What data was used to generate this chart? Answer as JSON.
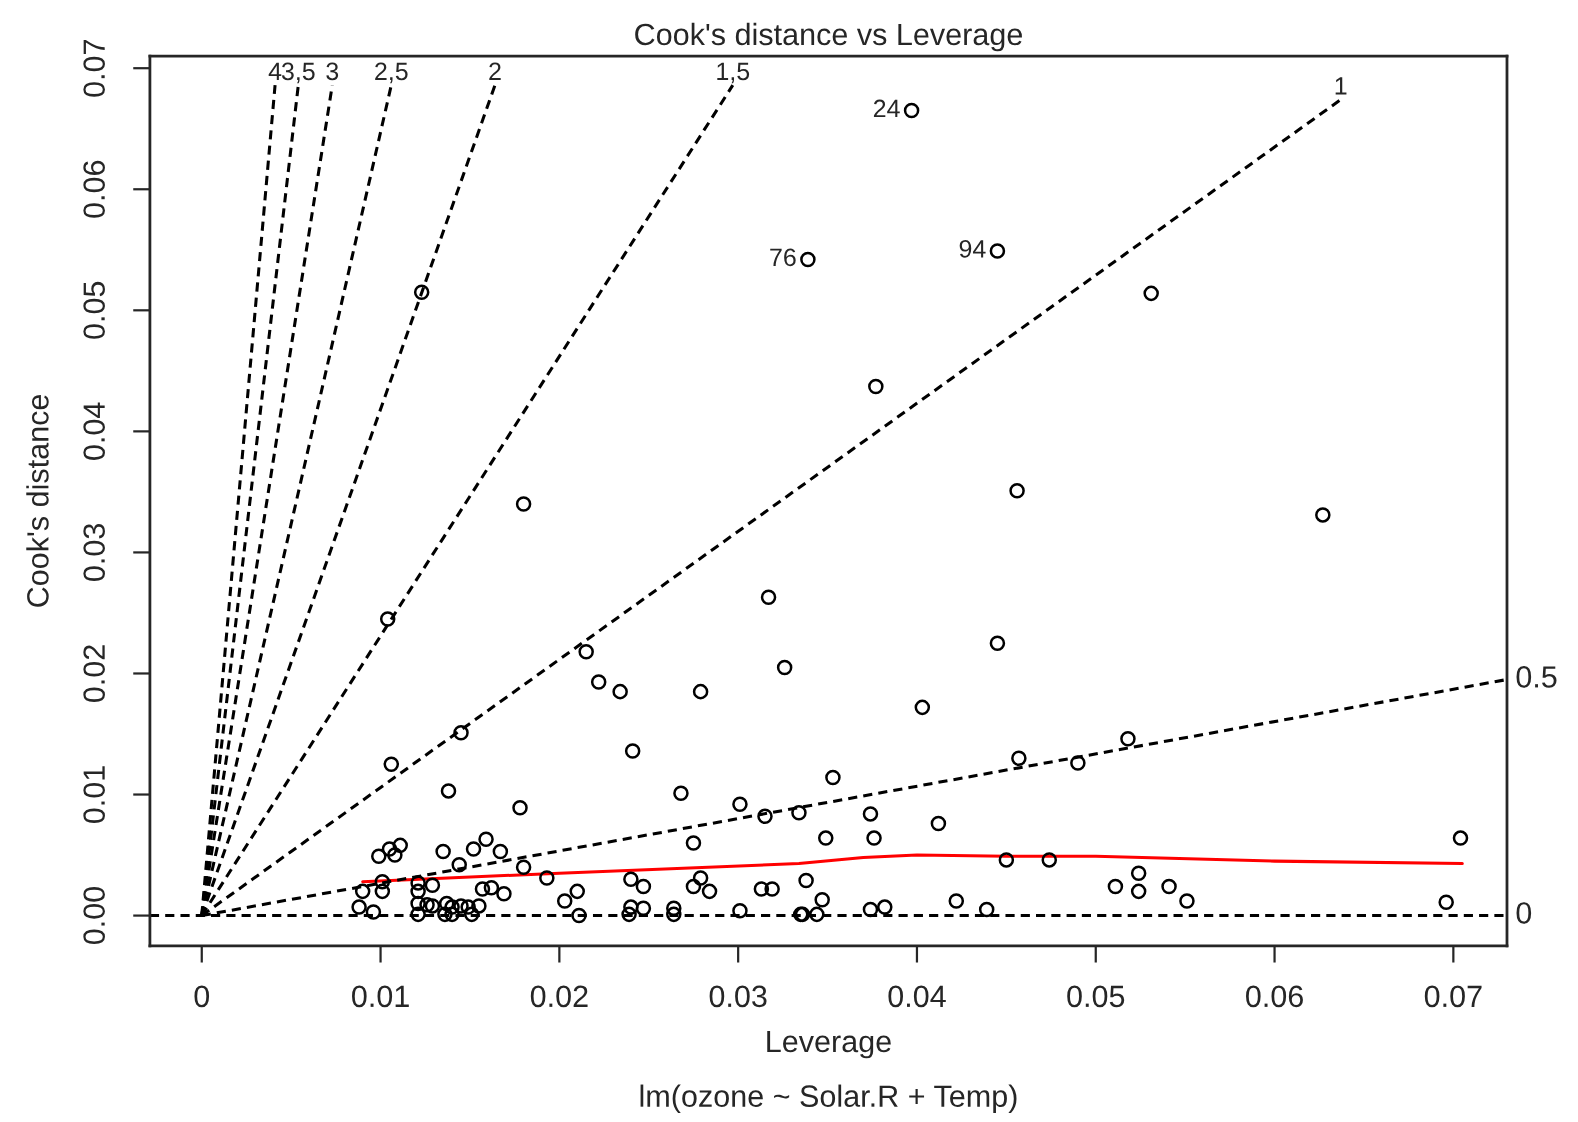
{
  "chart_data": {
    "type": "scatter",
    "title": "Cook's distance vs Leverage",
    "xlabel": "Leverage",
    "ylabel": "Cook's distance",
    "annotations": [
      "lm(ozone ~ Solar.R + Temp)",
      {
        "text": "24",
        "x": 0.0397,
        "y": 0.0665
      },
      {
        "text": "94",
        "x": 0.0445,
        "y": 0.0549
      },
      {
        "text": "76",
        "x": 0.0339,
        "y": 0.0542
      }
    ],
    "xlim": [
      -0.0029,
      0.073
    ],
    "ylim": [
      -0.0025,
      0.071
    ],
    "xticks": [
      0,
      0.01,
      0.02,
      0.03,
      0.04,
      0.05,
      0.06,
      0.07
    ],
    "yticks": [
      {
        "value": 0,
        "label": "0.00"
      },
      {
        "value": 0.01,
        "label": "0.01"
      },
      {
        "value": 0.02,
        "label": "0.02"
      },
      {
        "value": 0.03,
        "label": "0.03"
      },
      {
        "value": 0.04,
        "label": "0.04"
      },
      {
        "value": 0.05,
        "label": "0.05"
      },
      {
        "value": 0.06,
        "label": "0.06"
      },
      {
        "value": 0.07,
        "label": "0.07"
      }
    ],
    "grid": false,
    "series": [
      {
        "marker": "circle",
        "color": "#000000",
        "x": [
          0.0397,
          0.0445,
          0.0339,
          0.0531,
          0.0377,
          0.0456,
          0.0627,
          0.0123,
          0.018,
          0.0104,
          0.0106,
          0.0138,
          0.0145,
          0.0178,
          0.0215,
          0.0222,
          0.0234,
          0.0241,
          0.0268,
          0.0279,
          0.0275,
          0.0301,
          0.0317,
          0.0326,
          0.0315,
          0.0334,
          0.0099,
          0.0105,
          0.0111,
          0.0108,
          0.009,
          0.0101,
          0.0101,
          0.0088,
          0.0096,
          0.0121,
          0.0121,
          0.0129,
          0.0135,
          0.0144,
          0.0152,
          0.0159,
          0.0167,
          0.018,
          0.0157,
          0.0162,
          0.0169,
          0.0193,
          0.0121,
          0.0126,
          0.0129,
          0.0137,
          0.014,
          0.0145,
          0.0149,
          0.0155,
          0.0121,
          0.0136,
          0.014,
          0.0151,
          0.0203,
          0.021,
          0.0211,
          0.024,
          0.0247,
          0.024,
          0.0247,
          0.0239,
          0.0264,
          0.0264,
          0.0275,
          0.0284,
          0.0279,
          0.0301,
          0.0313,
          0.0319,
          0.0336,
          0.0338,
          0.0445,
          0.0403,
          0.0518,
          0.0457,
          0.049,
          0.0353,
          0.0374,
          0.0376,
          0.0349,
          0.0412,
          0.045,
          0.0474,
          0.0704,
          0.0347,
          0.0335,
          0.0344,
          0.0374,
          0.0382,
          0.0422,
          0.0439,
          0.0511,
          0.0524,
          0.0524,
          0.0541,
          0.0551,
          0.0696
        ],
        "values": [
          0.0665,
          0.0549,
          0.0542,
          0.0514,
          0.0437,
          0.0351,
          0.0331,
          0.0515,
          0.034,
          0.0245,
          0.0125,
          0.0103,
          0.0151,
          0.0089,
          0.0218,
          0.0193,
          0.0185,
          0.0136,
          0.0101,
          0.0185,
          0.006,
          0.0092,
          0.0263,
          0.0205,
          0.0082,
          0.0085,
          0.0049,
          0.0055,
          0.0058,
          0.005,
          0.002,
          0.0028,
          0.002,
          0.0007,
          0.0003,
          0.0027,
          0.002,
          0.0025,
          0.0053,
          0.0042,
          0.0055,
          0.0063,
          0.0053,
          0.004,
          0.0022,
          0.0023,
          0.0018,
          0.0031,
          0.001,
          0.0009,
          0.0008,
          0.001,
          0.0007,
          0.0008,
          0.0007,
          0.0008,
          0.0001,
          0.0001,
          0.0001,
          0.0001,
          0.0012,
          0.002,
          0.0,
          0.003,
          0.0024,
          0.0007,
          0.0006,
          0.0001,
          0.0006,
          0.0001,
          0.0024,
          0.002,
          0.0031,
          0.0004,
          0.0022,
          0.0022,
          0.0001,
          0.0029,
          0.0225,
          0.0172,
          0.0146,
          0.013,
          0.0126,
          0.0114,
          0.0084,
          0.0064,
          0.0064,
          0.0076,
          0.0046,
          0.0046,
          0.0064,
          0.0013,
          0.0001,
          0.0001,
          0.0005,
          0.0007,
          0.0012,
          0.0005,
          0.0024,
          0.0035,
          0.002,
          0.0024,
          0.0012,
          0.0011
        ]
      },
      {
        "type": "line",
        "color": "#ff0000",
        "line_style": "solid",
        "x": [
          0.009,
          0.02,
          0.0334,
          0.037,
          0.04,
          0.045,
          0.05,
          0.06,
          0.0705
        ],
        "values": [
          0.0028,
          0.0035,
          0.0043,
          0.0048,
          0.005,
          0.0049,
          0.0049,
          0.0045,
          0.0043
        ]
      },
      {
        "type": "line",
        "name": "0",
        "color": "#000000",
        "line_style": "dashed",
        "x": [
          -0.0029,
          0.073
        ],
        "values": [
          0,
          0
        ]
      },
      {
        "type": "line",
        "name": "0.5",
        "color": "#000000",
        "line_style": "dashed",
        "x": [
          0,
          0.073
        ],
        "values": [
          0,
          0.0195
        ]
      },
      {
        "type": "line",
        "name": "1",
        "color": "#000000",
        "line_style": "dashed",
        "x": [
          0,
          0.0637
        ],
        "values": [
          0,
          0.0674
        ]
      },
      {
        "type": "line",
        "name": "1,5",
        "color": "#000000",
        "line_style": "dashed",
        "x": [
          0,
          0.0297
        ],
        "values": [
          0,
          0.0686
        ]
      },
      {
        "type": "line",
        "name": "2",
        "color": "#000000",
        "line_style": "dashed",
        "x": [
          0,
          0.0164
        ],
        "values": [
          0,
          0.0686
        ]
      },
      {
        "type": "line",
        "name": "2,5",
        "color": "#000000",
        "line_style": "dashed",
        "x": [
          0,
          0.0106
        ],
        "values": [
          0,
          0.0686
        ]
      },
      {
        "type": "line",
        "name": "3",
        "color": "#000000",
        "line_style": "dashed",
        "x": [
          0,
          0.0073
        ],
        "values": [
          0,
          0.0686
        ]
      },
      {
        "type": "line",
        "name": "3,5",
        "color": "#000000",
        "line_style": "dashed",
        "x": [
          0,
          0.0054
        ],
        "values": [
          0,
          0.0686
        ]
      },
      {
        "type": "line",
        "name": "4",
        "color": "#000000",
        "line_style": "dashed",
        "x": [
          0,
          0.0041
        ],
        "values": [
          0,
          0.0686
        ]
      }
    ]
  }
}
